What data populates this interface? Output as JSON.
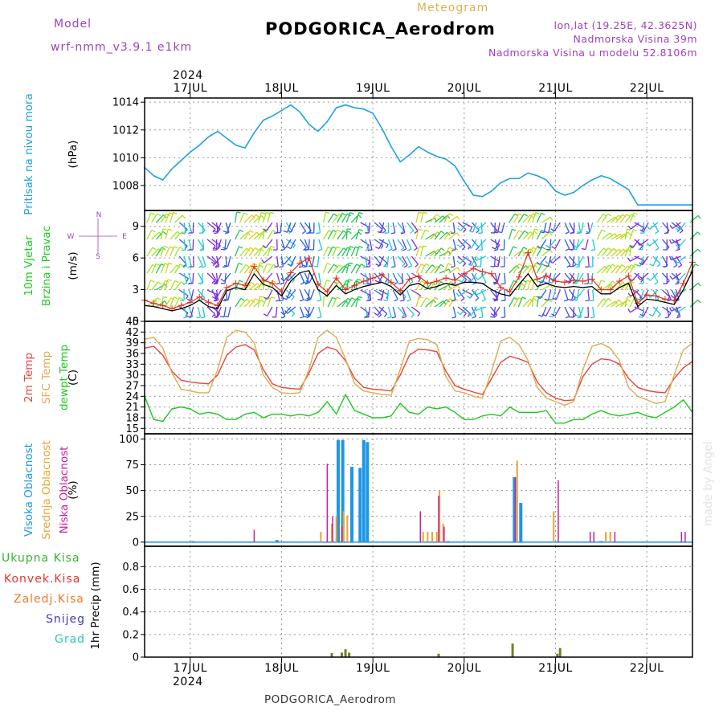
{
  "header": {
    "model_label": "Model",
    "model_name": "wrf-nmm_v3.9.1  e1km",
    "subtitle": "Meteogram",
    "title": "PODGORICA_Aerodrom",
    "lonlat": "lon,lat (19.25E, 42.3625N)",
    "elevation": "Nadmorska Visina 39m",
    "elevation_model": "Nadmorska Visina u modelu 52.8106m",
    "year": "2024"
  },
  "footer": {
    "station": "PODGORICA_Aerodrom",
    "watermark": "made by Angel"
  },
  "colors": {
    "pressure": "#1ea0e6",
    "wind_speed": "#000000",
    "wind_gust": "#e0301e",
    "t2m": "#e8453c",
    "tsfc": "#e0aa50",
    "dewpt": "#1ec81e",
    "high_cloud": "#1e96e6",
    "mid_cloud": "#e6a532",
    "low_cloud": "#c81ea0",
    "precip_total": "#32b432",
    "precip_conv": "#e63232",
    "precip_frozen": "#f07828",
    "snow": "#3c3cc8",
    "graupel": "#28c8b4",
    "precip_bar": "#6e8228"
  },
  "wind_compass": {
    "n": "N",
    "s": "S",
    "e": "E",
    "w": "W"
  },
  "chart_data": [
    {
      "type": "line",
      "name": "pressure",
      "ylabels": [
        "Pritisak na nivou mora",
        "(hPa)"
      ],
      "ylim": [
        1006.2,
        1014.3
      ],
      "yticks": [
        1008,
        1010,
        1012,
        1014
      ],
      "x": [
        16.5,
        16.6,
        16.7,
        16.8,
        16.9,
        17.0,
        17.1,
        17.2,
        17.3,
        17.4,
        17.5,
        17.6,
        17.7,
        17.8,
        17.9,
        18.0,
        18.1,
        18.2,
        18.3,
        18.4,
        18.5,
        18.6,
        18.7,
        18.8,
        18.9,
        19.0,
        19.1,
        19.2,
        19.3,
        19.4,
        19.5,
        19.6,
        19.7,
        19.8,
        19.9,
        20.0,
        20.1,
        20.2,
        20.3,
        20.4,
        20.5,
        20.6,
        20.7,
        20.8,
        20.9,
        21.0,
        21.1,
        21.2,
        21.3,
        21.4,
        21.5,
        21.6,
        21.7,
        21.8,
        21.9,
        22.0,
        22.1,
        22.2,
        22.3,
        22.4,
        22.5
      ],
      "values": [
        1009.3,
        1008.7,
        1008.4,
        1009.2,
        1009.8,
        1010.4,
        1010.9,
        1011.5,
        1011.9,
        1011.4,
        1010.9,
        1010.7,
        1011.8,
        1012.7,
        1013.0,
        1013.4,
        1013.8,
        1013.3,
        1012.4,
        1011.9,
        1012.6,
        1013.6,
        1013.8,
        1013.6,
        1013.5,
        1013.2,
        1012.1,
        1010.8,
        1009.7,
        1010.2,
        1010.8,
        1010.4,
        1010.1,
        1009.9,
        1009.4,
        1008.3,
        1007.3,
        1007.2,
        1007.6,
        1008.2,
        1008.5,
        1008.5,
        1008.9,
        1008.7,
        1008.4,
        1007.6,
        1007.3,
        1007.5,
        1008.0,
        1008.4,
        1008.7,
        1008.5,
        1008.1,
        1007.7,
        1006.6,
        1006.6,
        1006.6,
        1006.6,
        1006.6,
        1006.6,
        1006.6
      ]
    },
    {
      "type": "line",
      "name": "wind",
      "ylabels": [
        "10m Vjetar",
        "Brzina i Pravac",
        "(m/s)"
      ],
      "ylim": [
        0,
        10.5
      ],
      "yticks": [
        0,
        3,
        6,
        9
      ],
      "x": [
        16.5,
        16.6,
        16.7,
        16.8,
        16.9,
        17.0,
        17.1,
        17.2,
        17.3,
        17.4,
        17.5,
        17.6,
        17.7,
        17.8,
        17.9,
        18.0,
        18.1,
        18.2,
        18.3,
        18.4,
        18.5,
        18.6,
        18.7,
        18.8,
        18.9,
        19.0,
        19.1,
        19.2,
        19.3,
        19.4,
        19.5,
        19.6,
        19.7,
        19.8,
        19.9,
        20.0,
        20.1,
        20.2,
        20.3,
        20.4,
        20.5,
        20.6,
        20.7,
        20.8,
        20.9,
        21.0,
        21.1,
        21.2,
        21.3,
        21.4,
        21.5,
        21.6,
        21.7,
        21.8,
        21.9,
        22.0,
        22.1,
        22.2,
        22.3,
        22.4,
        22.5
      ],
      "series": [
        {
          "name": "speed",
          "values": [
            1.5,
            1.4,
            1.2,
            1.0,
            1.2,
            1.5,
            2.0,
            1.4,
            1.2,
            2.9,
            3.2,
            3.0,
            4.5,
            3.5,
            3.2,
            2.4,
            3.8,
            4.6,
            4.8,
            3.0,
            2.4,
            3.4,
            2.6,
            3.0,
            3.3,
            3.5,
            3.7,
            3.3,
            2.5,
            3.4,
            3.6,
            3.1,
            3.3,
            3.6,
            3.4,
            3.7,
            3.7,
            3.6,
            3.0,
            2.6,
            2.4,
            3.5,
            4.5,
            3.3,
            3.6,
            3.3,
            3.2,
            3.3,
            3.2,
            3.3,
            2.6,
            2.6,
            3.2,
            3.6,
            1.4,
            2.1,
            2.0,
            1.8,
            1.6,
            3.0,
            4.8
          ]
        },
        {
          "name": "gust",
          "values": [
            2.0,
            1.7,
            1.5,
            1.2,
            1.5,
            1.8,
            2.3,
            1.8,
            1.5,
            3.2,
            3.6,
            3.4,
            5.2,
            3.9,
            3.6,
            2.8,
            4.6,
            5.5,
            6.0,
            3.5,
            2.8,
            4.1,
            3.0,
            3.4,
            3.8,
            4.1,
            4.4,
            3.7,
            2.9,
            4.0,
            4.3,
            3.6,
            3.8,
            4.1,
            3.9,
            4.5,
            5.0,
            4.7,
            4.5,
            3.2,
            2.8,
            4.2,
            6.5,
            4.0,
            4.3,
            3.8,
            3.7,
            3.9,
            3.8,
            4.0,
            3.0,
            3.0,
            3.8,
            4.3,
            1.7,
            2.5,
            2.4,
            2.1,
            2.0,
            3.6,
            5.6
          ]
        }
      ]
    },
    {
      "type": "line",
      "name": "temperature",
      "ylabels": [
        "2m Temp",
        "SFC Temp",
        "dewpt Temp",
        "(C)"
      ],
      "ylim": [
        13.5,
        45
      ],
      "yticks": [
        15,
        18,
        21,
        24,
        27,
        30,
        33,
        36,
        39,
        42,
        45
      ],
      "x": [
        16.5,
        16.6,
        16.7,
        16.8,
        16.9,
        17.0,
        17.1,
        17.2,
        17.3,
        17.4,
        17.5,
        17.6,
        17.7,
        17.8,
        17.9,
        18.0,
        18.1,
        18.2,
        18.3,
        18.4,
        18.5,
        18.6,
        18.7,
        18.8,
        18.9,
        19.0,
        19.1,
        19.2,
        19.3,
        19.4,
        19.5,
        19.6,
        19.7,
        19.8,
        19.9,
        20.0,
        20.1,
        20.2,
        20.3,
        20.4,
        20.5,
        20.6,
        20.7,
        20.8,
        20.9,
        21.0,
        21.1,
        21.2,
        21.3,
        21.4,
        21.5,
        21.6,
        21.7,
        21.8,
        21.9,
        22.0,
        22.1,
        22.2,
        22.3,
        22.4,
        22.5
      ],
      "series": [
        {
          "name": "t2m",
          "values": [
            37.5,
            38.0,
            35.5,
            31.0,
            28.5,
            28.0,
            27.7,
            27.5,
            30.0,
            35.5,
            37.8,
            38.5,
            37.0,
            31.5,
            27.5,
            26.5,
            26.2,
            26.0,
            30.5,
            36.0,
            37.8,
            37.0,
            34.0,
            29.0,
            26.5,
            26.0,
            25.8,
            25.5,
            30.0,
            35.5,
            37.2,
            37.0,
            36.5,
            31.0,
            27.0,
            26.0,
            25.2,
            24.5,
            29.0,
            33.5,
            35.2,
            34.5,
            33.5,
            28.0,
            25.0,
            23.5,
            22.8,
            23.0,
            29.5,
            33.0,
            34.5,
            34.2,
            33.0,
            29.0,
            26.5,
            25.6,
            25.2,
            25.0,
            29.0,
            32.0,
            33.8
          ]
        },
        {
          "name": "tsfc",
          "values": [
            40.0,
            40.5,
            37.5,
            30.5,
            26.0,
            25.5,
            25.0,
            25.0,
            31.5,
            40.5,
            42.5,
            42.0,
            39.0,
            30.0,
            26.5,
            25.0,
            24.8,
            25.0,
            31.5,
            40.5,
            42.5,
            40.5,
            34.5,
            27.5,
            25.5,
            25.0,
            24.5,
            24.3,
            31.5,
            39.5,
            40.2,
            39.8,
            38.5,
            29.5,
            25.5,
            25.0,
            24.0,
            23.5,
            31.0,
            39.5,
            40.5,
            38.5,
            34.0,
            26.5,
            23.5,
            22.5,
            21.5,
            22.5,
            31.5,
            38.0,
            38.8,
            37.5,
            34.0,
            26.5,
            24.0,
            23.0,
            22.0,
            22.5,
            30.0,
            37.0,
            38.8
          ]
        },
        {
          "name": "dewpt",
          "values": [
            24.0,
            17.5,
            17.0,
            20.5,
            21.0,
            20.5,
            19.0,
            19.5,
            19.0,
            17.5,
            17.5,
            19.0,
            19.5,
            18.0,
            19.0,
            19.0,
            18.5,
            19.0,
            18.5,
            19.5,
            22.5,
            19.0,
            24.5,
            20.0,
            19.0,
            18.0,
            18.0,
            18.5,
            22.0,
            19.5,
            19.0,
            21.0,
            20.5,
            21.0,
            19.5,
            17.5,
            17.5,
            18.5,
            19.0,
            18.5,
            21.0,
            19.5,
            19.5,
            19.5,
            20.0,
            16.5,
            16.5,
            17.5,
            17.5,
            19.0,
            20.0,
            19.0,
            18.5,
            19.0,
            19.5,
            18.5,
            18.0,
            19.5,
            21.0,
            23.0,
            19.5
          ]
        }
      ]
    },
    {
      "type": "bar",
      "name": "cloud_cover",
      "ylabels": [
        "Visoka Oblacnost",
        "Srednja Oblacnost",
        "Niska Oblacnost",
        "(%)"
      ],
      "ylim": [
        -4,
        105
      ],
      "yticks": [
        0,
        25,
        50,
        75,
        100
      ],
      "high": [
        [
          17.03,
          1
        ],
        [
          17.95,
          2
        ],
        [
          18.62,
          99
        ],
        [
          18.67,
          99
        ],
        [
          18.77,
          73
        ],
        [
          18.86,
          72
        ],
        [
          18.9,
          99
        ],
        [
          18.94,
          97
        ],
        [
          19.82,
          1
        ],
        [
          20.55,
          63
        ],
        [
          20.62,
          38
        ],
        [
          21.5,
          1
        ]
      ],
      "mid": [
        [
          18.43,
          10
        ],
        [
          18.55,
          18
        ],
        [
          18.6,
          25
        ],
        [
          18.68,
          30
        ],
        [
          18.72,
          26
        ],
        [
          19.55,
          10
        ],
        [
          19.6,
          10
        ],
        [
          19.65,
          10
        ],
        [
          19.7,
          10
        ],
        [
          19.73,
          50
        ],
        [
          19.77,
          18
        ],
        [
          20.58,
          79
        ],
        [
          20.98,
          30
        ],
        [
          21.55,
          10
        ],
        [
          21.6,
          10
        ]
      ],
      "low": [
        [
          17.7,
          12
        ],
        [
          18.5,
          76
        ],
        [
          18.56,
          25
        ],
        [
          18.66,
          15
        ],
        [
          19.52,
          30
        ],
        [
          19.72,
          45
        ],
        [
          19.78,
          15
        ],
        [
          20.56,
          63
        ],
        [
          21.03,
          60
        ],
        [
          21.38,
          10
        ],
        [
          21.42,
          10
        ],
        [
          21.65,
          10
        ],
        [
          22.38,
          10
        ],
        [
          22.42,
          10
        ]
      ]
    },
    {
      "type": "bar",
      "name": "precipitation",
      "ylabels": [
        "Ukupna Kisa",
        "Konvek.Kisa",
        "Zaledj.Kisa",
        "Snijeg",
        "Grad",
        "1hr Precip (mm)"
      ],
      "ylim": [
        0,
        0.98
      ],
      "yticks": [
        0,
        0.2,
        0.4,
        0.6,
        0.8
      ],
      "bars": [
        [
          18.55,
          0.035
        ],
        [
          18.66,
          0.04
        ],
        [
          18.7,
          0.07
        ],
        [
          18.74,
          0.04
        ],
        [
          19.72,
          0.03
        ],
        [
          20.53,
          0.12
        ],
        [
          21.02,
          0.03
        ],
        [
          21.05,
          0.08
        ]
      ]
    }
  ],
  "xaxis": {
    "day_ticks": [
      {
        "x": 17,
        "label": "17JUL"
      },
      {
        "x": 18,
        "label": "18JUL"
      },
      {
        "x": 19,
        "label": "19JUL"
      },
      {
        "x": 20,
        "label": "20JUL"
      },
      {
        "x": 21,
        "label": "21JUL"
      },
      {
        "x": 22,
        "label": "22JUL"
      }
    ],
    "range": [
      16.5,
      22.5
    ]
  }
}
